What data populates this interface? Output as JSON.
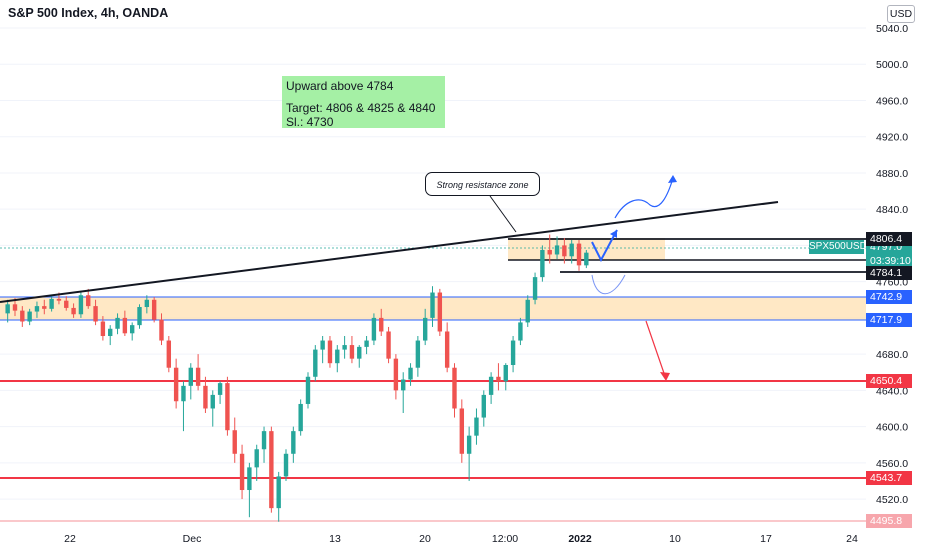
{
  "header": {
    "title": "S&P 500 Index, 4h, OANDA",
    "currency_button": "USD"
  },
  "note": {
    "line1": "Upward above 4784",
    "line2": "Target: 4806 & 4825 & 4840",
    "line3": "Sl.: 4730"
  },
  "callout": {
    "text": "Strong resistance zone"
  },
  "ticker_label": "SPX500USD",
  "current_price": {
    "value": "4797.0",
    "countdown": "03:39:10",
    "color": "#26a69a"
  },
  "price_levels": [
    {
      "label": "4806.4",
      "color": "#131722"
    },
    {
      "label": "4784.1",
      "color": "#131722"
    },
    {
      "label": "4742.9",
      "color": "#2962ff"
    },
    {
      "label": "4717.9",
      "color": "#2962ff"
    },
    {
      "label": "4650.4",
      "color": "#f23645"
    },
    {
      "label": "4543.7",
      "color": "#f23645"
    },
    {
      "label": "4495.8",
      "color": "#f7a6ac"
    }
  ],
  "chart_data": {
    "type": "candlestick",
    "title": "S&P 500 Index, 4h, OANDA",
    "y_axis": {
      "ticks": [
        "5040.0",
        "5000.0",
        "4960.0",
        "4920.0",
        "4880.0",
        "4840.0",
        "4800.0",
        "4760.0",
        "4720.0",
        "4680.0",
        "4640.0",
        "4600.0",
        "4560.0",
        "4520.0"
      ],
      "range": [
        4490,
        5050
      ]
    },
    "x_axis": {
      "ticks": [
        "22",
        "Dec",
        "13",
        "20",
        "12:00",
        "2022",
        "10",
        "17",
        "24"
      ]
    },
    "candles": [
      [
        4725,
        4740,
        4715,
        4735
      ],
      [
        4735,
        4742,
        4722,
        4728
      ],
      [
        4728,
        4733,
        4710,
        4716
      ],
      [
        4716,
        4730,
        4712,
        4727
      ],
      [
        4727,
        4738,
        4720,
        4733
      ],
      [
        4733,
        4740,
        4724,
        4730
      ],
      [
        4730,
        4745,
        4727,
        4741
      ],
      [
        4741,
        4748,
        4735,
        4739
      ],
      [
        4739,
        4744,
        4728,
        4731
      ],
      [
        4731,
        4736,
        4720,
        4724
      ],
      [
        4724,
        4750,
        4720,
        4745
      ],
      [
        4745,
        4752,
        4730,
        4733
      ],
      [
        4733,
        4740,
        4712,
        4716
      ],
      [
        4716,
        4722,
        4695,
        4700
      ],
      [
        4700,
        4712,
        4690,
        4708
      ],
      [
        4708,
        4725,
        4702,
        4720
      ],
      [
        4720,
        4728,
        4700,
        4703
      ],
      [
        4703,
        4715,
        4695,
        4712
      ],
      [
        4712,
        4735,
        4708,
        4732
      ],
      [
        4732,
        4745,
        4725,
        4740
      ],
      [
        4740,
        4743,
        4715,
        4718
      ],
      [
        4718,
        4725,
        4690,
        4695
      ],
      [
        4695,
        4700,
        4660,
        4665
      ],
      [
        4665,
        4675,
        4620,
        4628
      ],
      [
        4628,
        4650,
        4595,
        4645
      ],
      [
        4645,
        4670,
        4630,
        4665
      ],
      [
        4665,
        4680,
        4640,
        4645
      ],
      [
        4645,
        4655,
        4615,
        4620
      ],
      [
        4620,
        4640,
        4600,
        4635
      ],
      [
        4635,
        4650,
        4625,
        4648
      ],
      [
        4648,
        4655,
        4590,
        4596
      ],
      [
        4596,
        4610,
        4560,
        4570
      ],
      [
        4570,
        4580,
        4520,
        4530
      ],
      [
        4530,
        4560,
        4500,
        4555
      ],
      [
        4555,
        4580,
        4540,
        4575
      ],
      [
        4575,
        4600,
        4560,
        4595
      ],
      [
        4595,
        4600,
        4505,
        4510
      ],
      [
        4510,
        4550,
        4495,
        4545
      ],
      [
        4545,
        4575,
        4540,
        4570
      ],
      [
        4570,
        4600,
        4560,
        4595
      ],
      [
        4595,
        4630,
        4590,
        4625
      ],
      [
        4625,
        4660,
        4620,
        4655
      ],
      [
        4655,
        4690,
        4650,
        4685
      ],
      [
        4685,
        4700,
        4670,
        4695
      ],
      [
        4695,
        4700,
        4665,
        4670
      ],
      [
        4670,
        4690,
        4660,
        4685
      ],
      [
        4685,
        4700,
        4675,
        4690
      ],
      [
        4690,
        4700,
        4670,
        4675
      ],
      [
        4675,
        4690,
        4665,
        4688
      ],
      [
        4688,
        4700,
        4680,
        4695
      ],
      [
        4695,
        4725,
        4690,
        4720
      ],
      [
        4720,
        4730,
        4700,
        4705
      ],
      [
        4705,
        4710,
        4670,
        4675
      ],
      [
        4675,
        4680,
        4630,
        4640
      ],
      [
        4640,
        4660,
        4615,
        4652
      ],
      [
        4652,
        4670,
        4645,
        4665
      ],
      [
        4665,
        4700,
        4655,
        4695
      ],
      [
        4695,
        4730,
        4690,
        4720
      ],
      [
        4720,
        4755,
        4710,
        4748
      ],
      [
        4748,
        4752,
        4700,
        4705
      ],
      [
        4705,
        4715,
        4660,
        4665
      ],
      [
        4665,
        4670,
        4610,
        4620
      ],
      [
        4620,
        4630,
        4560,
        4570
      ],
      [
        4570,
        4600,
        4540,
        4590
      ],
      [
        4590,
        4620,
        4580,
        4610
      ],
      [
        4610,
        4640,
        4600,
        4635
      ],
      [
        4635,
        4660,
        4625,
        4655
      ],
      [
        4655,
        4670,
        4640,
        4650
      ],
      [
        4650,
        4670,
        4640,
        4668
      ],
      [
        4668,
        4700,
        4660,
        4695
      ],
      [
        4695,
        4720,
        4690,
        4715
      ],
      [
        4715,
        4745,
        4710,
        4740
      ],
      [
        4740,
        4770,
        4735,
        4765
      ],
      [
        4765,
        4800,
        4760,
        4795
      ],
      [
        4795,
        4812,
        4780,
        4790
      ],
      [
        4790,
        4810,
        4785,
        4800
      ],
      [
        4800,
        4808,
        4780,
        4788
      ],
      [
        4788,
        4806,
        4780,
        4802
      ],
      [
        4802,
        4806,
        4772,
        4778
      ],
      [
        4778,
        4795,
        4775,
        4792
      ]
    ]
  }
}
